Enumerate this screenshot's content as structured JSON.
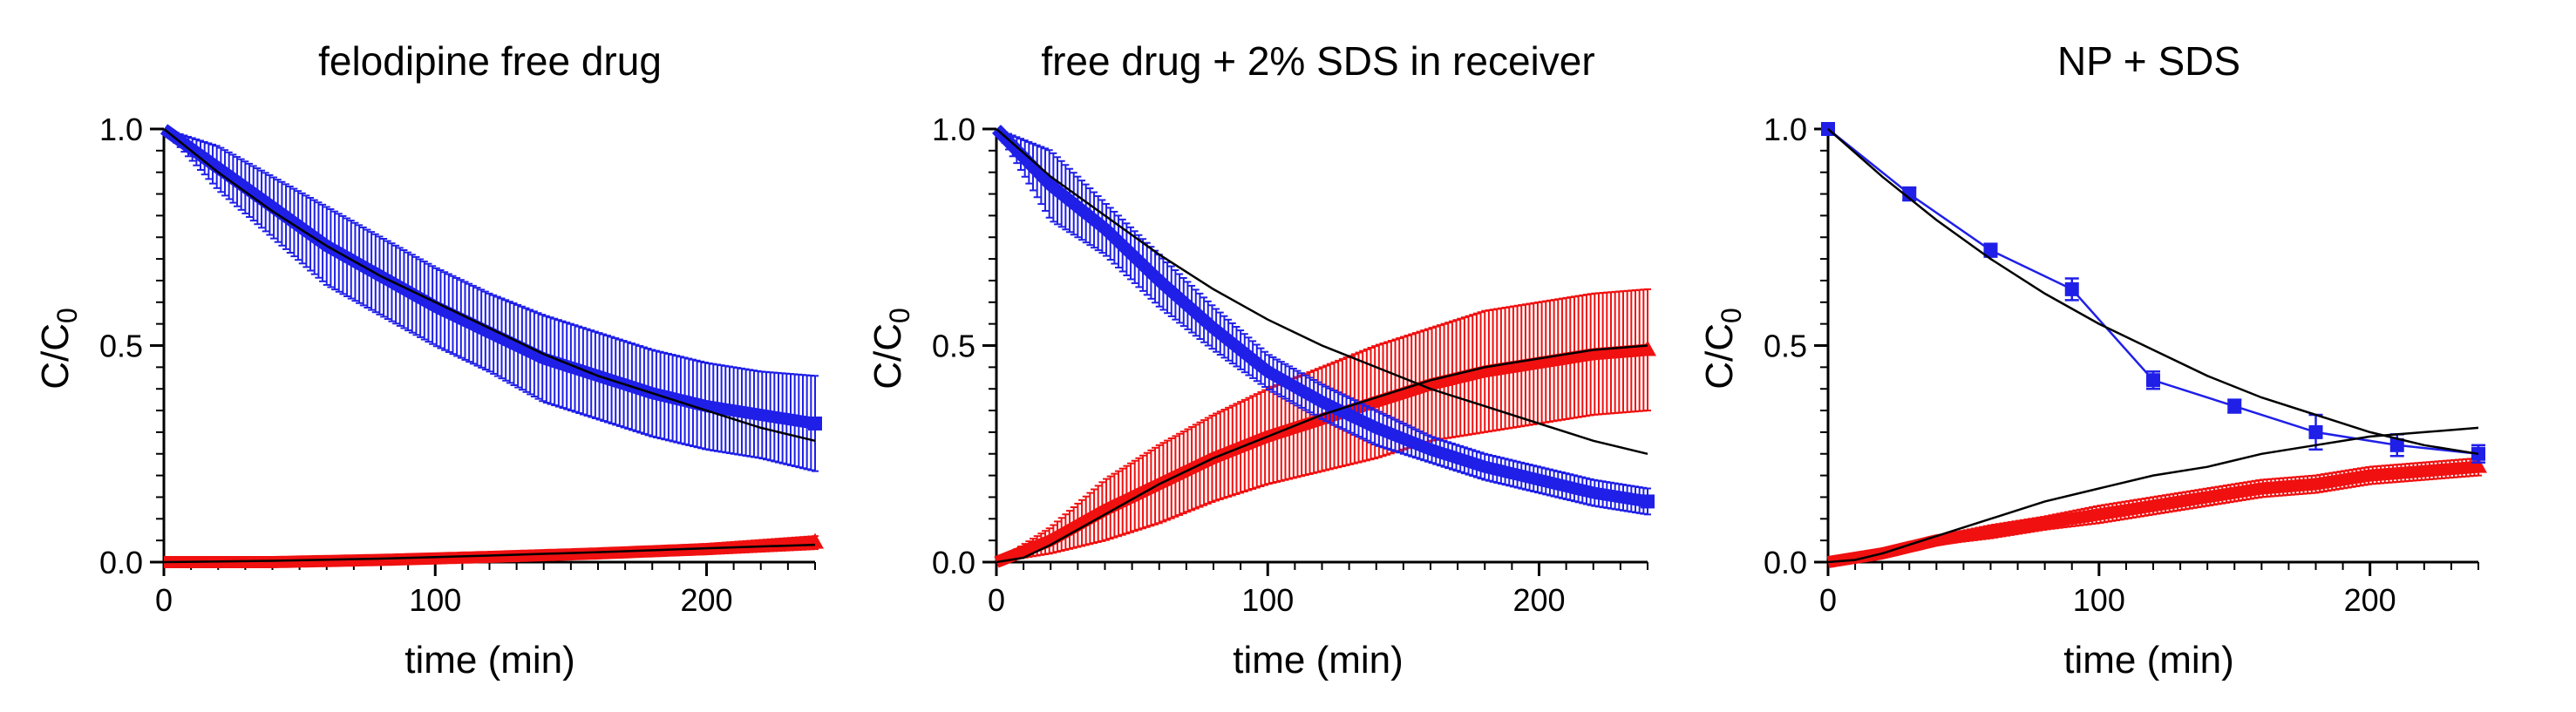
{
  "colors": {
    "blue": "#1f1fe8",
    "red": "#f01010",
    "black": "#000000"
  },
  "chart_data": [
    {
      "type": "line",
      "title": "felodipine free drug",
      "xlabel": "time (min)",
      "ylabel": "C/C0",
      "xlim": [
        0,
        240
      ],
      "ylim": [
        0,
        1
      ],
      "xticks": [
        "0",
        "100",
        "200"
      ],
      "yticks": [
        "0.0",
        "0.5",
        "1.0"
      ],
      "series": [
        {
          "color": "#1f1fe8",
          "marker": "square",
          "style": "dense",
          "x": [
            0,
            20,
            40,
            60,
            80,
            100,
            120,
            140,
            160,
            180,
            200,
            220,
            240
          ],
          "y": [
            1.0,
            0.91,
            0.82,
            0.73,
            0.66,
            0.59,
            0.53,
            0.47,
            0.43,
            0.39,
            0.36,
            0.34,
            0.32
          ],
          "err": [
            0.0,
            0.05,
            0.07,
            0.09,
            0.09,
            0.09,
            0.09,
            0.1,
            0.1,
            0.1,
            0.1,
            0.1,
            0.11
          ]
        },
        {
          "color": "#f01010",
          "marker": "triangle",
          "style": "dense",
          "x": [
            0,
            40,
            80,
            120,
            160,
            200,
            240
          ],
          "y": [
            0.0,
            0.0,
            0.005,
            0.012,
            0.02,
            0.03,
            0.045
          ],
          "err": [
            0.0,
            0.004,
            0.006,
            0.008,
            0.01,
            0.012,
            0.015
          ]
        }
      ],
      "fits": [
        {
          "x": [
            0,
            20,
            40,
            60,
            80,
            100,
            120,
            140,
            160,
            180,
            200,
            220,
            240
          ],
          "y": [
            1.0,
            0.9,
            0.81,
            0.73,
            0.66,
            0.6,
            0.54,
            0.48,
            0.43,
            0.39,
            0.35,
            0.31,
            0.28
          ]
        },
        {
          "x": [
            0,
            40,
            80,
            120,
            160,
            200,
            240
          ],
          "y": [
            0.0,
            0.003,
            0.008,
            0.015,
            0.023,
            0.032,
            0.04
          ]
        }
      ]
    },
    {
      "type": "line",
      "title": "free drug + 2% SDS in receiver",
      "xlabel": "time (min)",
      "ylabel": "C/C0",
      "xlim": [
        0,
        240
      ],
      "ylim": [
        0,
        1
      ],
      "xticks": [
        "0",
        "100",
        "200"
      ],
      "yticks": [
        "0.0",
        "0.5",
        "1.0"
      ],
      "series": [
        {
          "color": "#1f1fe8",
          "marker": "square",
          "style": "dense",
          "x": [
            0,
            20,
            40,
            60,
            80,
            100,
            120,
            140,
            160,
            180,
            200,
            220,
            240
          ],
          "y": [
            1.0,
            0.87,
            0.77,
            0.65,
            0.54,
            0.44,
            0.37,
            0.31,
            0.26,
            0.22,
            0.19,
            0.16,
            0.14
          ],
          "err": [
            0.0,
            0.08,
            0.06,
            0.06,
            0.05,
            0.04,
            0.04,
            0.04,
            0.03,
            0.03,
            0.03,
            0.03,
            0.03
          ]
        },
        {
          "color": "#f01010",
          "marker": "triangle",
          "style": "dense",
          "x": [
            0,
            20,
            40,
            60,
            80,
            100,
            120,
            140,
            160,
            180,
            200,
            220,
            240
          ],
          "y": [
            0.0,
            0.05,
            0.12,
            0.18,
            0.24,
            0.29,
            0.33,
            0.37,
            0.41,
            0.44,
            0.46,
            0.48,
            0.49
          ],
          "err": [
            0.0,
            0.03,
            0.07,
            0.09,
            0.1,
            0.11,
            0.12,
            0.13,
            0.13,
            0.14,
            0.14,
            0.14,
            0.14
          ]
        }
      ],
      "fits": [
        {
          "x": [
            0,
            20,
            40,
            60,
            80,
            100,
            120,
            140,
            160,
            180,
            200,
            220,
            240
          ],
          "y": [
            1.0,
            0.89,
            0.8,
            0.71,
            0.63,
            0.56,
            0.5,
            0.45,
            0.4,
            0.36,
            0.32,
            0.28,
            0.25
          ]
        },
        {
          "x": [
            0,
            10,
            20,
            40,
            60,
            80,
            100,
            120,
            140,
            160,
            180,
            200,
            220,
            240
          ],
          "y": [
            0.0,
            0.01,
            0.04,
            0.11,
            0.18,
            0.24,
            0.29,
            0.34,
            0.38,
            0.42,
            0.45,
            0.47,
            0.49,
            0.5
          ]
        }
      ]
    },
    {
      "type": "line",
      "title": "NP + SDS",
      "xlabel": "time (min)",
      "ylabel": "C/C0",
      "xlim": [
        0,
        240
      ],
      "ylim": [
        0,
        1
      ],
      "xticks": [
        "0",
        "100",
        "200"
      ],
      "yticks": [
        "0.0",
        "0.5",
        "1.0"
      ],
      "series": [
        {
          "color": "#1f1fe8",
          "marker": "square",
          "style": "points",
          "x": [
            0,
            30,
            60,
            90,
            120,
            150,
            180,
            210,
            240
          ],
          "y": [
            1.0,
            0.85,
            0.72,
            0.63,
            0.42,
            0.36,
            0.3,
            0.27,
            0.25
          ],
          "err": [
            0.0,
            0.015,
            0.015,
            0.025,
            0.02,
            0.015,
            0.04,
            0.025,
            0.02
          ]
        },
        {
          "color": "#f01010",
          "marker": "triangle",
          "style": "dense",
          "x": [
            0,
            20,
            40,
            60,
            80,
            100,
            120,
            140,
            160,
            180,
            200,
            220,
            240
          ],
          "y": [
            0.0,
            0.02,
            0.05,
            0.07,
            0.09,
            0.11,
            0.13,
            0.15,
            0.17,
            0.18,
            0.2,
            0.21,
            0.22
          ],
          "err": [
            0.0,
            0.01,
            0.01,
            0.015,
            0.015,
            0.02,
            0.02,
            0.02,
            0.02,
            0.02,
            0.02,
            0.02,
            0.02
          ]
        }
      ],
      "fits": [
        {
          "x": [
            0,
            20,
            40,
            60,
            80,
            100,
            120,
            140,
            160,
            180,
            200,
            220,
            240
          ],
          "y": [
            1.0,
            0.89,
            0.79,
            0.7,
            0.62,
            0.55,
            0.49,
            0.43,
            0.38,
            0.34,
            0.3,
            0.27,
            0.25
          ]
        },
        {
          "x": [
            0,
            10,
            20,
            30,
            40,
            60,
            80,
            100,
            120,
            140,
            160,
            180,
            200,
            220,
            240
          ],
          "y": [
            0.0,
            0.005,
            0.02,
            0.04,
            0.06,
            0.1,
            0.14,
            0.17,
            0.2,
            0.22,
            0.25,
            0.27,
            0.29,
            0.3,
            0.31
          ]
        }
      ]
    }
  ]
}
